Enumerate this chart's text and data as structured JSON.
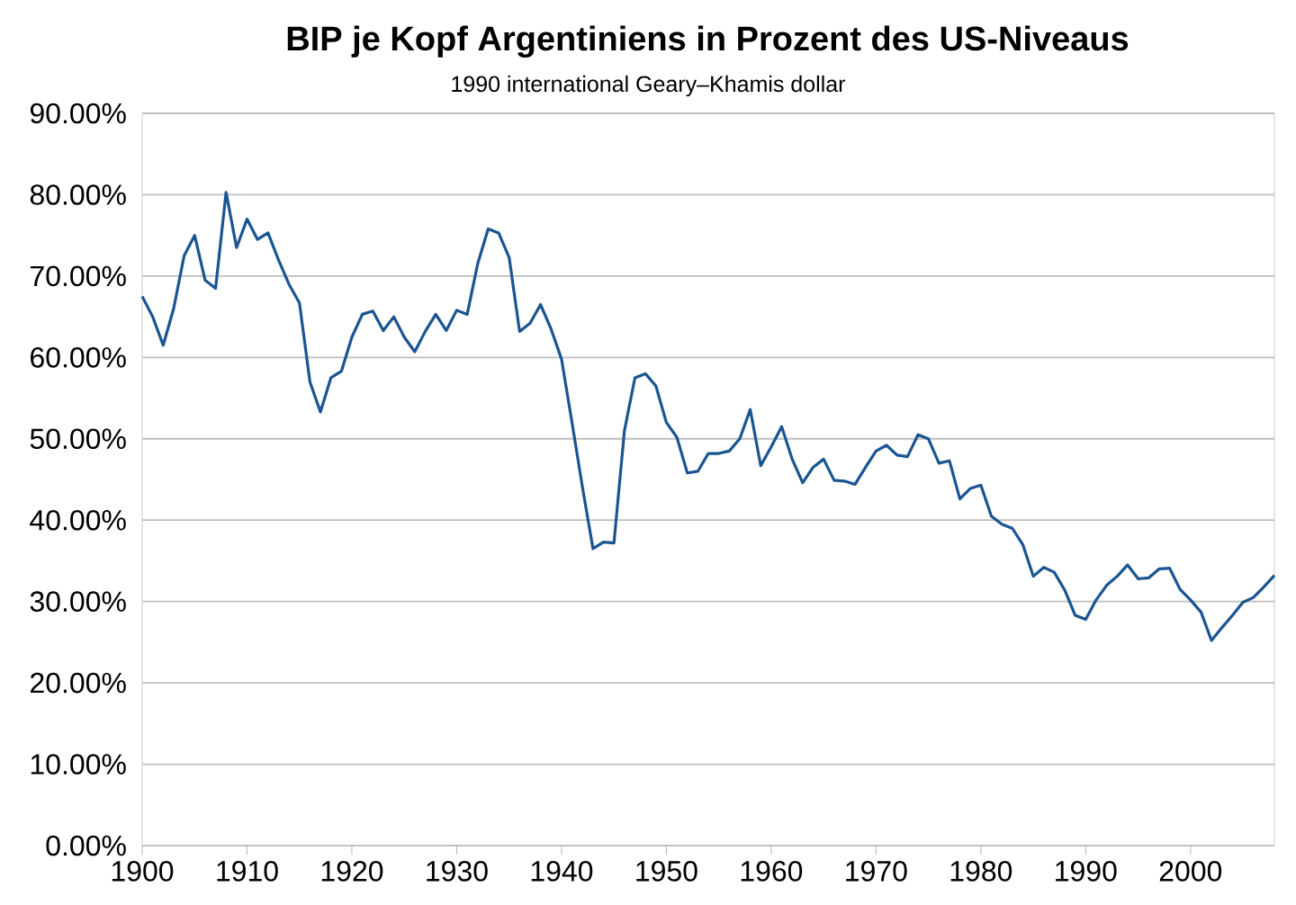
{
  "chart_data": {
    "type": "line",
    "title": "BIP je Kopf Argentiniens in Prozent des US-Niveaus",
    "subtitle": "1990 international Geary–Khamis dollar",
    "x": [
      1900,
      1901,
      1902,
      1903,
      1904,
      1905,
      1906,
      1907,
      1908,
      1909,
      1910,
      1911,
      1912,
      1913,
      1914,
      1915,
      1916,
      1917,
      1918,
      1919,
      1920,
      1921,
      1922,
      1923,
      1924,
      1925,
      1926,
      1927,
      1928,
      1929,
      1930,
      1931,
      1932,
      1933,
      1934,
      1935,
      1936,
      1937,
      1938,
      1939,
      1940,
      1941,
      1942,
      1943,
      1944,
      1945,
      1946,
      1947,
      1948,
      1949,
      1950,
      1951,
      1952,
      1953,
      1954,
      1955,
      1956,
      1957,
      1958,
      1959,
      1960,
      1961,
      1962,
      1963,
      1964,
      1965,
      1966,
      1967,
      1968,
      1969,
      1970,
      1971,
      1972,
      1973,
      1974,
      1975,
      1976,
      1977,
      1978,
      1979,
      1980,
      1981,
      1982,
      1983,
      1984,
      1985,
      1986,
      1987,
      1988,
      1989,
      1990,
      1991,
      1992,
      1993,
      1994,
      1995,
      1996,
      1997,
      1998,
      1999,
      2000,
      2001,
      2002,
      2003,
      2004,
      2005,
      2006,
      2007,
      2008
    ],
    "series": [
      {
        "color": "#1a5592",
        "values": [
          67.5,
          65,
          61.5,
          66,
          72.5,
          75,
          69.5,
          68.5,
          80.3,
          73.5,
          77,
          74.5,
          75.3,
          72,
          69,
          66.7,
          57,
          53.3,
          57.5,
          58.3,
          62.5,
          65.3,
          65.7,
          63.3,
          65,
          62.5,
          60.7,
          63.2,
          65.3,
          63.3,
          65.8,
          65.3,
          71.5,
          75.8,
          75.3,
          72.3,
          63.2,
          64.2,
          66.5,
          63.5,
          59.8,
          52,
          44,
          36.5,
          37.3,
          37.2,
          51,
          57.5,
          58,
          56.5,
          52,
          50.2,
          45.8,
          46,
          48.2,
          48.2,
          48.5,
          50,
          53.6,
          46.7,
          49,
          51.5,
          47.5,
          44.6,
          46.5,
          47.5,
          44.9,
          44.8,
          44.4,
          46.5,
          48.5,
          49.2,
          48,
          47.8,
          50.5,
          50,
          47,
          47.3,
          42.6,
          43.9,
          44.3,
          40.5,
          39.5,
          39,
          37,
          33.1,
          34.2,
          33.6,
          31.4,
          28.3,
          27.8,
          30.2,
          32,
          33.1,
          34.5,
          32.8,
          32.9,
          34,
          34.1,
          31.5,
          30.2,
          28.7,
          25.2,
          26.8,
          28.3,
          29.9,
          30.5,
          31.8,
          33.2
        ]
      }
    ],
    "xlim": [
      1900,
      2008
    ],
    "xticks": [
      1900,
      1910,
      1920,
      1930,
      1940,
      1950,
      1960,
      1970,
      1980,
      1990,
      2000
    ],
    "ylim": [
      0,
      90
    ],
    "yticks": [
      {
        "value": 0,
        "label": "0.00%"
      },
      {
        "value": 10,
        "label": "10.00%"
      },
      {
        "value": 20,
        "label": "20.00%"
      },
      {
        "value": 30,
        "label": "30.00%"
      },
      {
        "value": 40,
        "label": "40.00%"
      },
      {
        "value": 50,
        "label": "50.00%"
      },
      {
        "value": 60,
        "label": "60.00%"
      },
      {
        "value": 70,
        "label": "70.00%"
      },
      {
        "value": 80,
        "label": "80.00%"
      },
      {
        "value": 90,
        "label": "90.00%"
      }
    ],
    "grid": "y",
    "marker": "none",
    "line_style": "solid"
  }
}
